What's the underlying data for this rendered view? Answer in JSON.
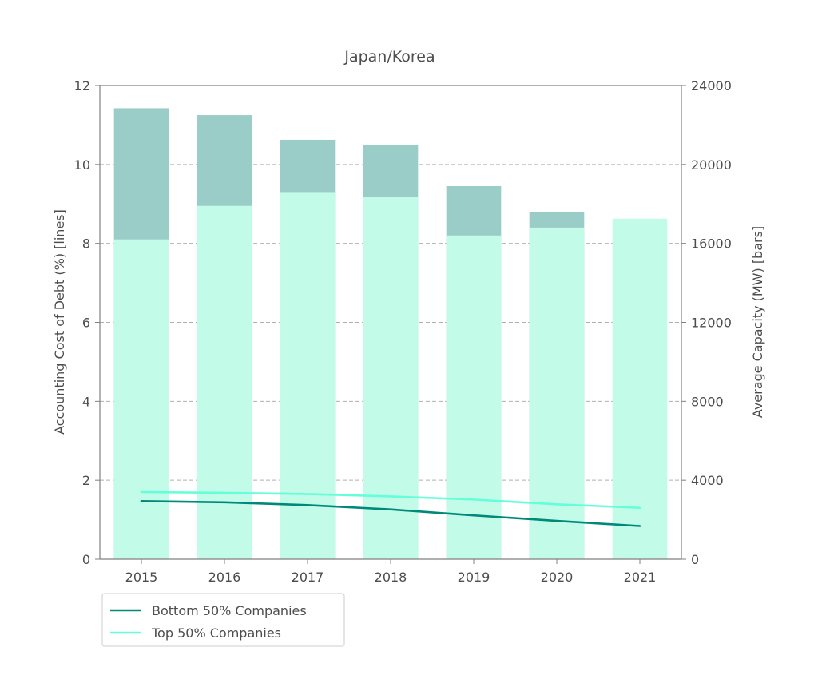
{
  "chart_data": {
    "type": "bar",
    "title": "Japan/Korea",
    "categories": [
      "2015",
      "2016",
      "2017",
      "2018",
      "2019",
      "2020",
      "2021"
    ],
    "y_left": {
      "label": "Accounting Cost of Debt (%)  [lines]",
      "range": [
        0,
        12
      ],
      "ticks": [
        0,
        2,
        4,
        6,
        8,
        10,
        12
      ]
    },
    "y_right": {
      "label": "Average Capacity (MW) [bars]",
      "range": [
        0,
        24000
      ],
      "ticks": [
        0,
        4000,
        8000,
        12000,
        16000,
        20000,
        24000
      ]
    },
    "grid": "horizontal dashed",
    "bar_series": [
      {
        "group": "Bottom 50% Companies",
        "color": "#009688",
        "values": [
          22850,
          22500,
          21250,
          21000,
          18900,
          17600,
          null
        ]
      },
      {
        "group": "Top 50% Companies",
        "color": "#64ffda",
        "values": [
          16200,
          17900,
          18600,
          18350,
          16400,
          16800,
          17250
        ]
      }
    ],
    "series": [
      {
        "name": "Bottom 50% Companies",
        "color": "#00897b",
        "values": [
          1.47,
          1.44,
          1.37,
          1.26,
          1.11,
          0.97,
          0.84
        ]
      },
      {
        "name": "Top 50% Companies",
        "color": "#64ffda",
        "values": [
          1.7,
          1.68,
          1.65,
          1.59,
          1.51,
          1.39,
          1.3
        ]
      }
    ],
    "legend": {
      "placement": "bottom-left",
      "entries": [
        "Bottom 50% Companies",
        "Top 50% Companies"
      ]
    }
  }
}
